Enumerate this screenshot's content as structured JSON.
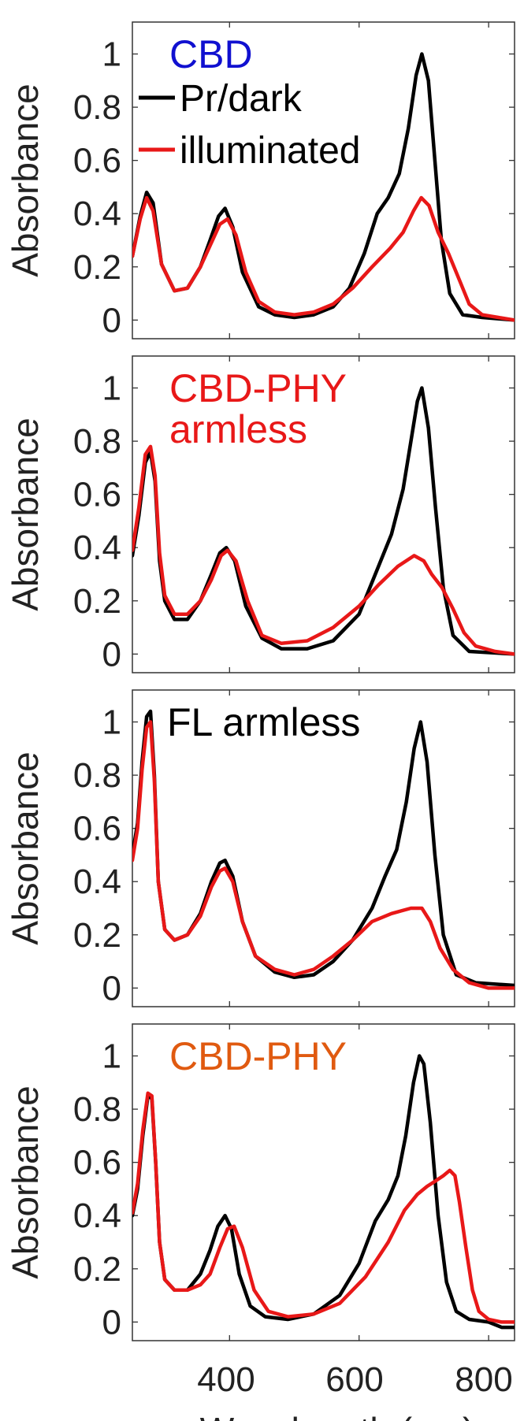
{
  "chart_data": [
    {
      "type": "line",
      "label": "CBD",
      "label_color": "#1010d0",
      "ylabel": "Absorbance",
      "xlim": [
        250,
        840
      ],
      "ylim": [
        -0.07,
        1.12
      ],
      "yticks": [
        "0",
        "0.2",
        "0.4",
        "0.6",
        "0.8",
        "1"
      ],
      "legend": {
        "placement": "top-left",
        "entries": [
          "Pr/dark",
          "illuminated"
        ]
      },
      "series": [
        {
          "name": "Pr/dark",
          "color": "#000000",
          "x": [
            250,
            262,
            272,
            282,
            295,
            315,
            335,
            355,
            370,
            383,
            393,
            405,
            420,
            445,
            470,
            500,
            530,
            560,
            585,
            608,
            628,
            645,
            662,
            676,
            688,
            697,
            707,
            717,
            727,
            740,
            760,
            790,
            840
          ],
          "y": [
            0.24,
            0.39,
            0.48,
            0.44,
            0.21,
            0.11,
            0.12,
            0.2,
            0.3,
            0.39,
            0.42,
            0.35,
            0.18,
            0.05,
            0.02,
            0.01,
            0.02,
            0.05,
            0.12,
            0.25,
            0.4,
            0.46,
            0.55,
            0.72,
            0.92,
            1.0,
            0.9,
            0.6,
            0.3,
            0.1,
            0.02,
            0.01,
            0.0
          ]
        },
        {
          "name": "illuminated",
          "color": "#e81818",
          "x": [
            250,
            262,
            272,
            282,
            295,
            315,
            335,
            355,
            370,
            385,
            397,
            410,
            425,
            445,
            470,
            500,
            530,
            560,
            590,
            620,
            648,
            668,
            684,
            696,
            708,
            722,
            738,
            755,
            770,
            790,
            815,
            840
          ],
          "y": [
            0.24,
            0.38,
            0.46,
            0.41,
            0.21,
            0.11,
            0.12,
            0.2,
            0.28,
            0.36,
            0.38,
            0.32,
            0.18,
            0.07,
            0.03,
            0.02,
            0.03,
            0.06,
            0.12,
            0.2,
            0.27,
            0.33,
            0.41,
            0.46,
            0.43,
            0.33,
            0.25,
            0.15,
            0.06,
            0.02,
            0.01,
            0.0
          ]
        }
      ]
    },
    {
      "type": "line",
      "label_lines": [
        "CBD-PHY",
        "armless"
      ],
      "label_color": "#e81818",
      "ylabel": "Absorbance",
      "xlim": [
        250,
        840
      ],
      "ylim": [
        -0.07,
        1.12
      ],
      "yticks": [
        "0",
        "0.2",
        "0.4",
        "0.6",
        "0.8",
        "1"
      ],
      "series": [
        {
          "name": "Pr/dark",
          "color": "#000000",
          "x": [
            250,
            260,
            270,
            278,
            285,
            292,
            300,
            315,
            335,
            355,
            372,
            385,
            395,
            408,
            425,
            450,
            480,
            520,
            560,
            600,
            630,
            650,
            668,
            680,
            690,
            697,
            707,
            718,
            730,
            745,
            770,
            840
          ],
          "y": [
            0.37,
            0.52,
            0.72,
            0.76,
            0.65,
            0.35,
            0.2,
            0.13,
            0.13,
            0.2,
            0.3,
            0.38,
            0.4,
            0.35,
            0.18,
            0.06,
            0.02,
            0.02,
            0.05,
            0.15,
            0.33,
            0.45,
            0.62,
            0.8,
            0.95,
            1.0,
            0.85,
            0.55,
            0.25,
            0.07,
            0.01,
            0.0
          ]
        },
        {
          "name": "illuminated",
          "color": "#e81818",
          "x": [
            250,
            260,
            270,
            278,
            285,
            292,
            300,
            315,
            335,
            355,
            372,
            387,
            397,
            410,
            428,
            450,
            480,
            520,
            560,
            600,
            630,
            660,
            685,
            700,
            712,
            728,
            745,
            762,
            780,
            810,
            840
          ],
          "y": [
            0.39,
            0.55,
            0.75,
            0.78,
            0.67,
            0.38,
            0.22,
            0.15,
            0.15,
            0.2,
            0.28,
            0.37,
            0.39,
            0.35,
            0.2,
            0.07,
            0.04,
            0.05,
            0.1,
            0.18,
            0.26,
            0.33,
            0.37,
            0.35,
            0.3,
            0.25,
            0.17,
            0.08,
            0.03,
            0.01,
            0.0
          ]
        }
      ]
    },
    {
      "type": "line",
      "label": "FL armless",
      "label_color": "#000000",
      "ylabel": "Absorbance",
      "xlim": [
        250,
        840
      ],
      "ylim": [
        -0.07,
        1.12
      ],
      "yticks": [
        "0",
        "0.2",
        "0.4",
        "0.6",
        "0.8",
        "1"
      ],
      "series": [
        {
          "name": "Pr/dark",
          "color": "#000000",
          "x": [
            250,
            258,
            265,
            272,
            278,
            284,
            290,
            300,
            315,
            335,
            355,
            372,
            385,
            393,
            405,
            420,
            440,
            470,
            500,
            530,
            560,
            590,
            620,
            640,
            658,
            673,
            685,
            695,
            705,
            717,
            730,
            750,
            780,
            840
          ],
          "y": [
            0.5,
            0.62,
            0.85,
            1.02,
            1.04,
            0.8,
            0.4,
            0.22,
            0.18,
            0.2,
            0.28,
            0.4,
            0.47,
            0.48,
            0.42,
            0.25,
            0.12,
            0.06,
            0.04,
            0.05,
            0.1,
            0.18,
            0.3,
            0.42,
            0.52,
            0.7,
            0.9,
            1.0,
            0.85,
            0.5,
            0.2,
            0.05,
            0.02,
            0.01
          ]
        },
        {
          "name": "illuminated",
          "color": "#e81818",
          "x": [
            250,
            258,
            265,
            272,
            278,
            284,
            290,
            300,
            315,
            335,
            355,
            372,
            385,
            393,
            405,
            420,
            440,
            470,
            500,
            530,
            560,
            590,
            620,
            650,
            680,
            697,
            710,
            725,
            745,
            770,
            800,
            840
          ],
          "y": [
            0.48,
            0.6,
            0.82,
            0.98,
            1.0,
            0.78,
            0.4,
            0.22,
            0.18,
            0.2,
            0.27,
            0.38,
            0.44,
            0.45,
            0.4,
            0.25,
            0.12,
            0.07,
            0.05,
            0.07,
            0.12,
            0.18,
            0.25,
            0.28,
            0.3,
            0.3,
            0.25,
            0.15,
            0.07,
            0.02,
            0.0,
            0.0
          ]
        }
      ]
    },
    {
      "type": "line",
      "label": "CBD-PHY",
      "label_color": "#e05a10",
      "ylabel": "Absorbance",
      "xlabel": "Wavelength (nm)",
      "xlim": [
        250,
        840
      ],
      "ylim": [
        -0.07,
        1.12
      ],
      "yticks": [
        "0",
        "0.2",
        "0.4",
        "0.6",
        "0.8",
        "1"
      ],
      "xticks": [
        400,
        600,
        800
      ],
      "series": [
        {
          "name": "Pr/dark",
          "color": "#000000",
          "x": [
            250,
            258,
            266,
            274,
            280,
            286,
            292,
            300,
            315,
            335,
            355,
            370,
            382,
            393,
            403,
            415,
            432,
            455,
            490,
            530,
            570,
            600,
            625,
            645,
            660,
            672,
            684,
            693,
            700,
            710,
            722,
            735,
            750,
            770,
            800,
            820,
            840
          ],
          "y": [
            0.4,
            0.5,
            0.7,
            0.85,
            0.84,
            0.6,
            0.3,
            0.16,
            0.12,
            0.12,
            0.18,
            0.27,
            0.36,
            0.4,
            0.35,
            0.18,
            0.06,
            0.02,
            0.01,
            0.03,
            0.1,
            0.22,
            0.38,
            0.46,
            0.55,
            0.7,
            0.9,
            1.0,
            0.97,
            0.75,
            0.4,
            0.15,
            0.04,
            0.01,
            0.0,
            -0.02,
            -0.02
          ]
        },
        {
          "name": "illuminated",
          "color": "#e81818",
          "x": [
            250,
            258,
            266,
            274,
            280,
            286,
            292,
            300,
            315,
            335,
            355,
            370,
            385,
            397,
            407,
            420,
            438,
            460,
            490,
            530,
            570,
            610,
            645,
            670,
            690,
            705,
            718,
            730,
            740,
            748,
            755,
            765,
            775,
            785,
            800,
            820,
            840
          ],
          "y": [
            0.41,
            0.52,
            0.72,
            0.86,
            0.85,
            0.6,
            0.3,
            0.16,
            0.12,
            0.12,
            0.14,
            0.18,
            0.28,
            0.35,
            0.36,
            0.28,
            0.12,
            0.04,
            0.02,
            0.03,
            0.07,
            0.17,
            0.3,
            0.42,
            0.48,
            0.51,
            0.53,
            0.55,
            0.57,
            0.55,
            0.45,
            0.28,
            0.12,
            0.04,
            0.01,
            0.0,
            0.0
          ]
        }
      ]
    }
  ]
}
